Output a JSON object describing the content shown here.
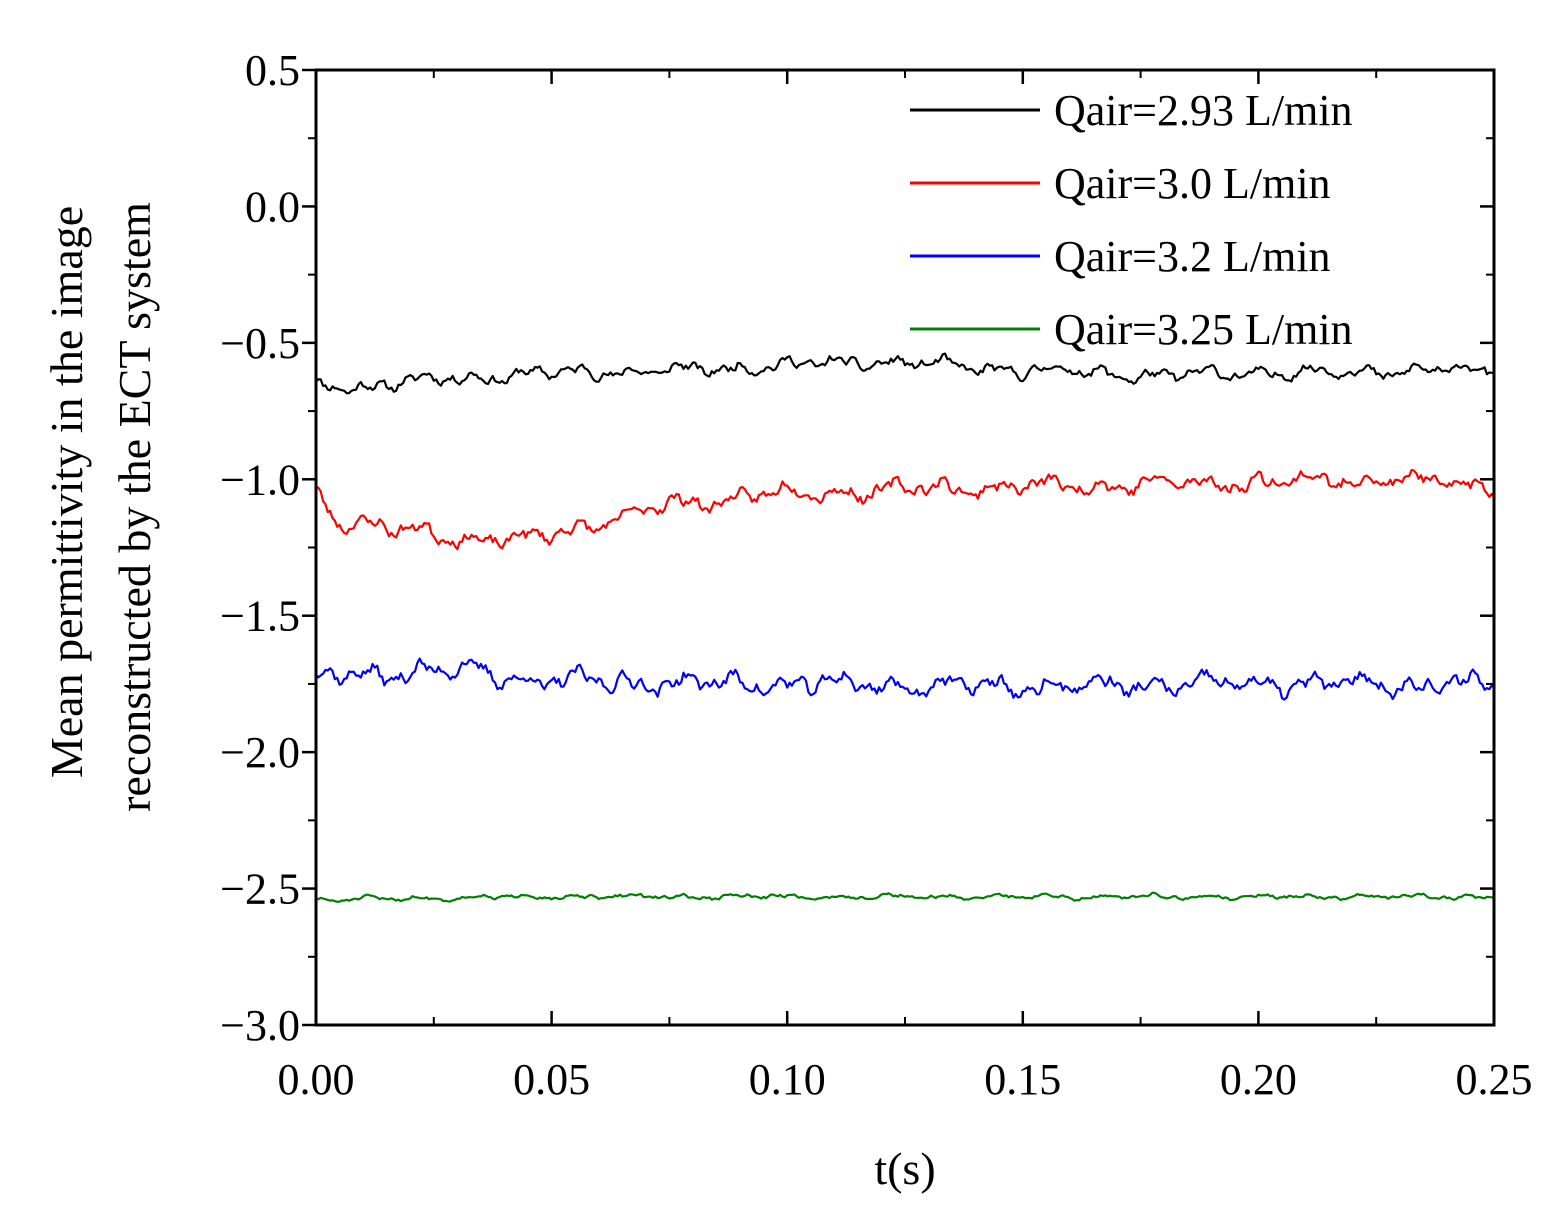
{
  "chart_data": {
    "type": "line",
    "title": "",
    "xlabel": "t(s)",
    "ylabel_lines": [
      "Mean permittivity in the image",
      "reconstructed by the ECT system"
    ],
    "xlim": [
      0.0,
      0.25
    ],
    "ylim": [
      -3.0,
      0.5
    ],
    "xticks": [
      0.0,
      0.05,
      0.1,
      0.15,
      0.2,
      0.25
    ],
    "xtick_labels": [
      "0.00",
      "0.05",
      "0.10",
      "0.15",
      "0.20",
      "0.25"
    ],
    "xminor_ticks": [
      0.025,
      0.075,
      0.125,
      0.175,
      0.225
    ],
    "yticks": [
      0.5,
      0.0,
      -0.5,
      -1.0,
      -1.5,
      -2.0,
      -2.5,
      -3.0
    ],
    "ytick_labels": [
      "0.5",
      "0.0",
      "−0.5",
      "−1.0",
      "−1.5",
      "−2.0",
      "−2.5",
      "−3.0"
    ],
    "yminor_ticks": [
      0.25,
      -0.25,
      -0.75,
      -1.25,
      -1.75,
      -2.25,
      -2.75
    ],
    "grid": false,
    "legend_position": "top-right",
    "x_resolution": 0.0005,
    "series": [
      {
        "name": "Qair=2.93 L/min",
        "color": "#000000",
        "base": [
          [
            0.0,
            -0.66
          ],
          [
            0.01,
            -0.66
          ],
          [
            0.02,
            -0.64
          ],
          [
            0.03,
            -0.63
          ],
          [
            0.05,
            -0.61
          ],
          [
            0.08,
            -0.6
          ],
          [
            0.1,
            -0.58
          ],
          [
            0.12,
            -0.57
          ],
          [
            0.15,
            -0.6
          ],
          [
            0.18,
            -0.62
          ],
          [
            0.2,
            -0.61
          ],
          [
            0.25,
            -0.6
          ]
        ],
        "noise_amplitude": 0.03,
        "seed": 11
      },
      {
        "name": "Qair=3.0 L/min",
        "color": "#ff0000",
        "base": [
          [
            0.0,
            -1.05
          ],
          [
            0.005,
            -1.15
          ],
          [
            0.02,
            -1.19
          ],
          [
            0.035,
            -1.22
          ],
          [
            0.045,
            -1.22
          ],
          [
            0.055,
            -1.18
          ],
          [
            0.065,
            -1.14
          ],
          [
            0.075,
            -1.09
          ],
          [
            0.1,
            -1.05
          ],
          [
            0.14,
            -1.03
          ],
          [
            0.17,
            -1.02
          ],
          [
            0.2,
            -1.01
          ],
          [
            0.22,
            -1.0
          ],
          [
            0.25,
            -1.02
          ]
        ],
        "noise_amplitude": 0.04,
        "seed": 23
      },
      {
        "name": "Qair=3.2 L/min",
        "color": "#0000ff",
        "base": [
          [
            0.0,
            -1.72
          ],
          [
            0.03,
            -1.7
          ],
          [
            0.05,
            -1.74
          ],
          [
            0.1,
            -1.75
          ],
          [
            0.15,
            -1.76
          ],
          [
            0.2,
            -1.75
          ],
          [
            0.25,
            -1.75
          ]
        ],
        "noise_amplitude": 0.045,
        "seed": 37
      },
      {
        "name": "Qair=3.25 L/min",
        "color": "#008000",
        "base": [
          [
            0.0,
            -2.54
          ],
          [
            0.05,
            -2.53
          ],
          [
            0.1,
            -2.53
          ],
          [
            0.15,
            -2.53
          ],
          [
            0.2,
            -2.53
          ],
          [
            0.25,
            -2.53
          ]
        ],
        "noise_amplitude": 0.012,
        "seed": 51
      }
    ]
  }
}
